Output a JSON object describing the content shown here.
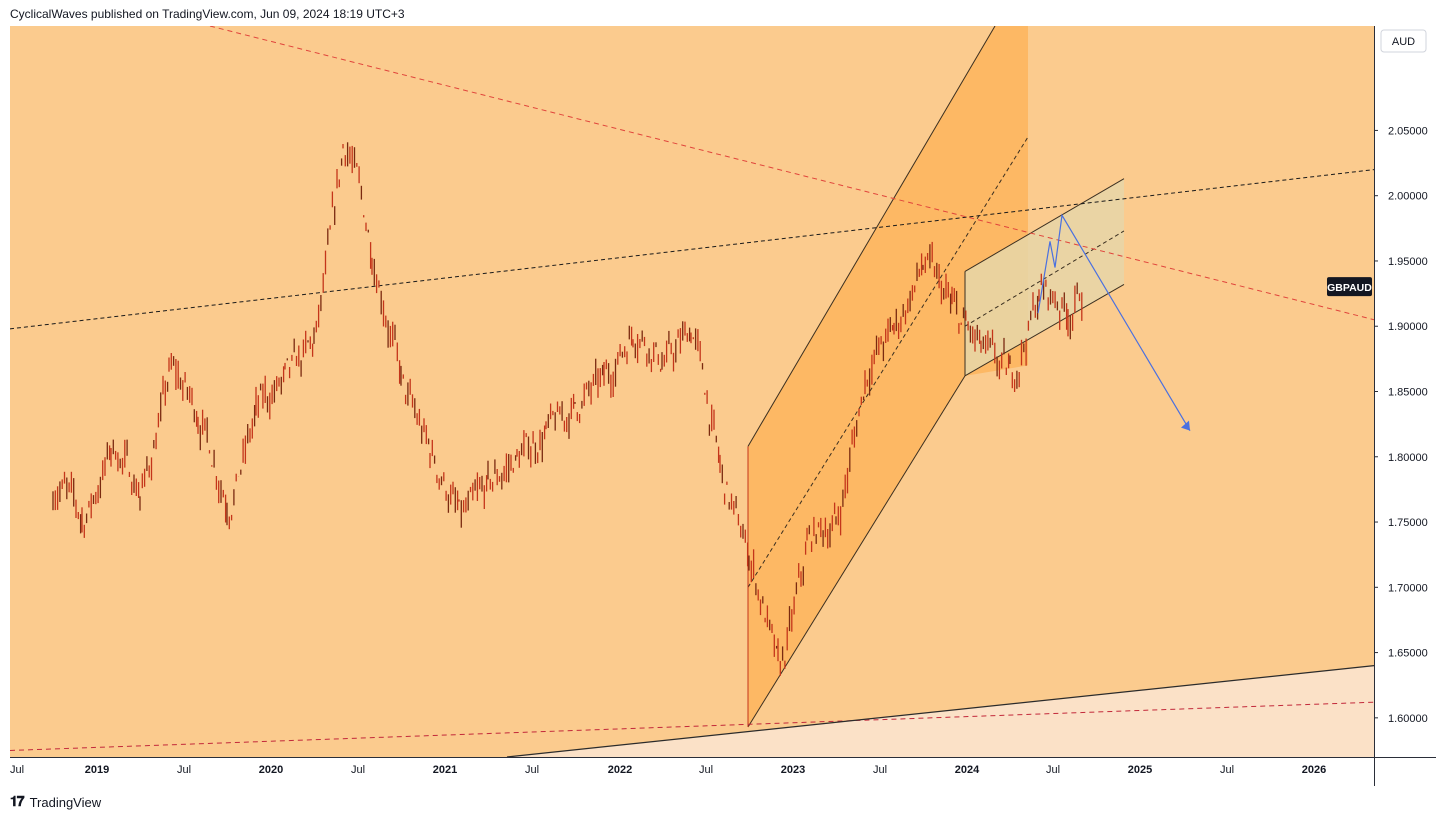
{
  "header": {
    "attribution": "CyclicalWaves published on TradingView.com, Jun 09, 2024 18:19 UTC+3"
  },
  "footer": {
    "brand": "TradingView"
  },
  "colors": {
    "background": "#fbcb8e",
    "lower_zone": "#fbe1c7",
    "channel_fill": "#fdb864",
    "range_fill": "#e6d6a8",
    "candles": "#c4351a",
    "projection": "#4a70e0",
    "resistance": "#e0443b"
  },
  "chart_data": {
    "type": "line",
    "symbol": "GBPAUD",
    "currency": "AUD",
    "ylim": [
      1.57,
      2.13
    ],
    "x_axis_labels": [
      "Jul",
      "2019",
      "Jul",
      "2020",
      "Jul",
      "2021",
      "Jul",
      "2022",
      "Jul",
      "2023",
      "Jul",
      "2024",
      "Jul",
      "2025",
      "Jul",
      "2026"
    ],
    "y_ticks": [
      1.6,
      1.65,
      1.7,
      1.75,
      1.8,
      1.85,
      1.9,
      1.95,
      2.0,
      2.05
    ],
    "y_tick_labels": [
      "1.60000",
      "1.65000",
      "1.70000",
      "1.75000",
      "1.80000",
      "1.85000",
      "1.90000",
      "1.95000",
      "2.00000",
      "2.05000"
    ],
    "last_price_label": "GBPAUD",
    "last_price": 1.93,
    "series": [
      {
        "x": [
          "2018-07",
          "2018-09",
          "2018-11",
          "2019-01",
          "2019-03",
          "2019-05",
          "2019-07",
          "2019-09",
          "2019-11",
          "2020-01",
          "2020-03",
          "2020-05",
          "2020-07",
          "2020-09",
          "2020-11",
          "2021-01",
          "2021-03",
          "2021-05",
          "2021-07",
          "2021-09",
          "2021-11",
          "2022-01",
          "2022-03",
          "2022-05",
          "2022-07",
          "2022-09",
          "2022-11",
          "2023-01",
          "2023-03",
          "2023-05",
          "2023-07",
          "2023-09",
          "2023-11",
          "2024-01",
          "2024-03",
          "2024-05",
          "2024-06"
        ],
        "values": [
          1.785,
          1.75,
          1.81,
          1.77,
          1.87,
          1.83,
          1.76,
          1.84,
          1.86,
          1.89,
          2.05,
          1.95,
          1.85,
          1.8,
          1.75,
          1.78,
          1.8,
          1.82,
          1.84,
          1.86,
          1.9,
          1.87,
          1.9,
          1.78,
          1.72,
          1.63,
          1.74,
          1.75,
          1.87,
          1.9,
          1.95,
          1.91,
          1.88,
          1.86,
          1.93,
          1.91,
          1.93
        ]
      }
    ]
  }
}
